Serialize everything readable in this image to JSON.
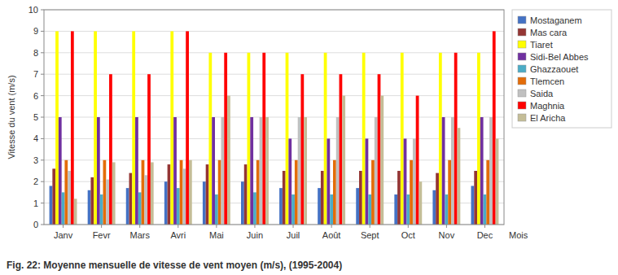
{
  "chart_data": {
    "type": "bar",
    "title": "Fig. 22: Moyenne mensuelle de vitesse de vent moyen (m/s), (1995-2004)",
    "xlabel": "Mois",
    "ylabel": "Vitesse du vent (m/s)",
    "categories": [
      "Janv",
      "Fevr",
      "Mars",
      "Avri",
      "Mai",
      "Juin",
      "Juil",
      "Août",
      "Sept",
      "Oct",
      "Nov",
      "Dec"
    ],
    "series": [
      {
        "name": "Mostaganem",
        "color": "#4472c4",
        "values": [
          1.8,
          1.6,
          1.7,
          2.0,
          2.0,
          2.0,
          1.7,
          1.7,
          1.7,
          1.4,
          1.6,
          1.8
        ]
      },
      {
        "name": "Mas cara",
        "color": "#943634",
        "values": [
          2.6,
          2.2,
          2.4,
          2.8,
          2.8,
          2.8,
          2.5,
          2.5,
          2.5,
          2.5,
          2.4,
          2.5
        ]
      },
      {
        "name": "Tiaret",
        "color": "#ffff00",
        "values": [
          9.0,
          9.0,
          9.0,
          9.0,
          8.0,
          8.0,
          8.0,
          8.0,
          8.0,
          8.0,
          8.0,
          8.0
        ]
      },
      {
        "name": "Sidi-Bel Abbes",
        "color": "#7030a0",
        "values": [
          5.0,
          5.0,
          5.0,
          5.0,
          5.0,
          5.0,
          4.0,
          4.0,
          4.0,
          4.0,
          5.0,
          5.0
        ]
      },
      {
        "name": "Ghazzaouet",
        "color": "#4bacc6",
        "values": [
          1.5,
          1.4,
          1.5,
          1.7,
          1.4,
          1.5,
          1.4,
          1.4,
          1.4,
          1.4,
          1.4,
          1.4
        ]
      },
      {
        "name": "Tlemcen",
        "color": "#e36c09",
        "values": [
          3.0,
          3.0,
          3.0,
          3.0,
          3.0,
          3.0,
          3.0,
          3.0,
          3.0,
          3.0,
          3.0,
          3.0
        ]
      },
      {
        "name": "Saida",
        "color": "#c0c0c0",
        "values": [
          2.5,
          2.1,
          2.3,
          2.6,
          5.0,
          5.0,
          5.0,
          5.0,
          5.0,
          4.0,
          5.0,
          5.0
        ]
      },
      {
        "name": "Maghnia",
        "color": "#ff0000",
        "values": [
          9.0,
          7.0,
          7.0,
          9.0,
          8.0,
          8.0,
          7.0,
          7.0,
          7.0,
          6.0,
          8.0,
          9.0
        ]
      },
      {
        "name": "El Aricha",
        "color": "#c4bd97",
        "values": [
          1.2,
          2.9,
          2.9,
          3.0,
          6.0,
          5.0,
          5.0,
          6.0,
          6.0,
          2.0,
          4.5,
          4.0
        ]
      }
    ],
    "ylim": [
      0,
      10
    ],
    "yticks": [
      0,
      1,
      2,
      3,
      4,
      5,
      6,
      7,
      8,
      9,
      10
    ],
    "grid": true,
    "legend": "right"
  }
}
